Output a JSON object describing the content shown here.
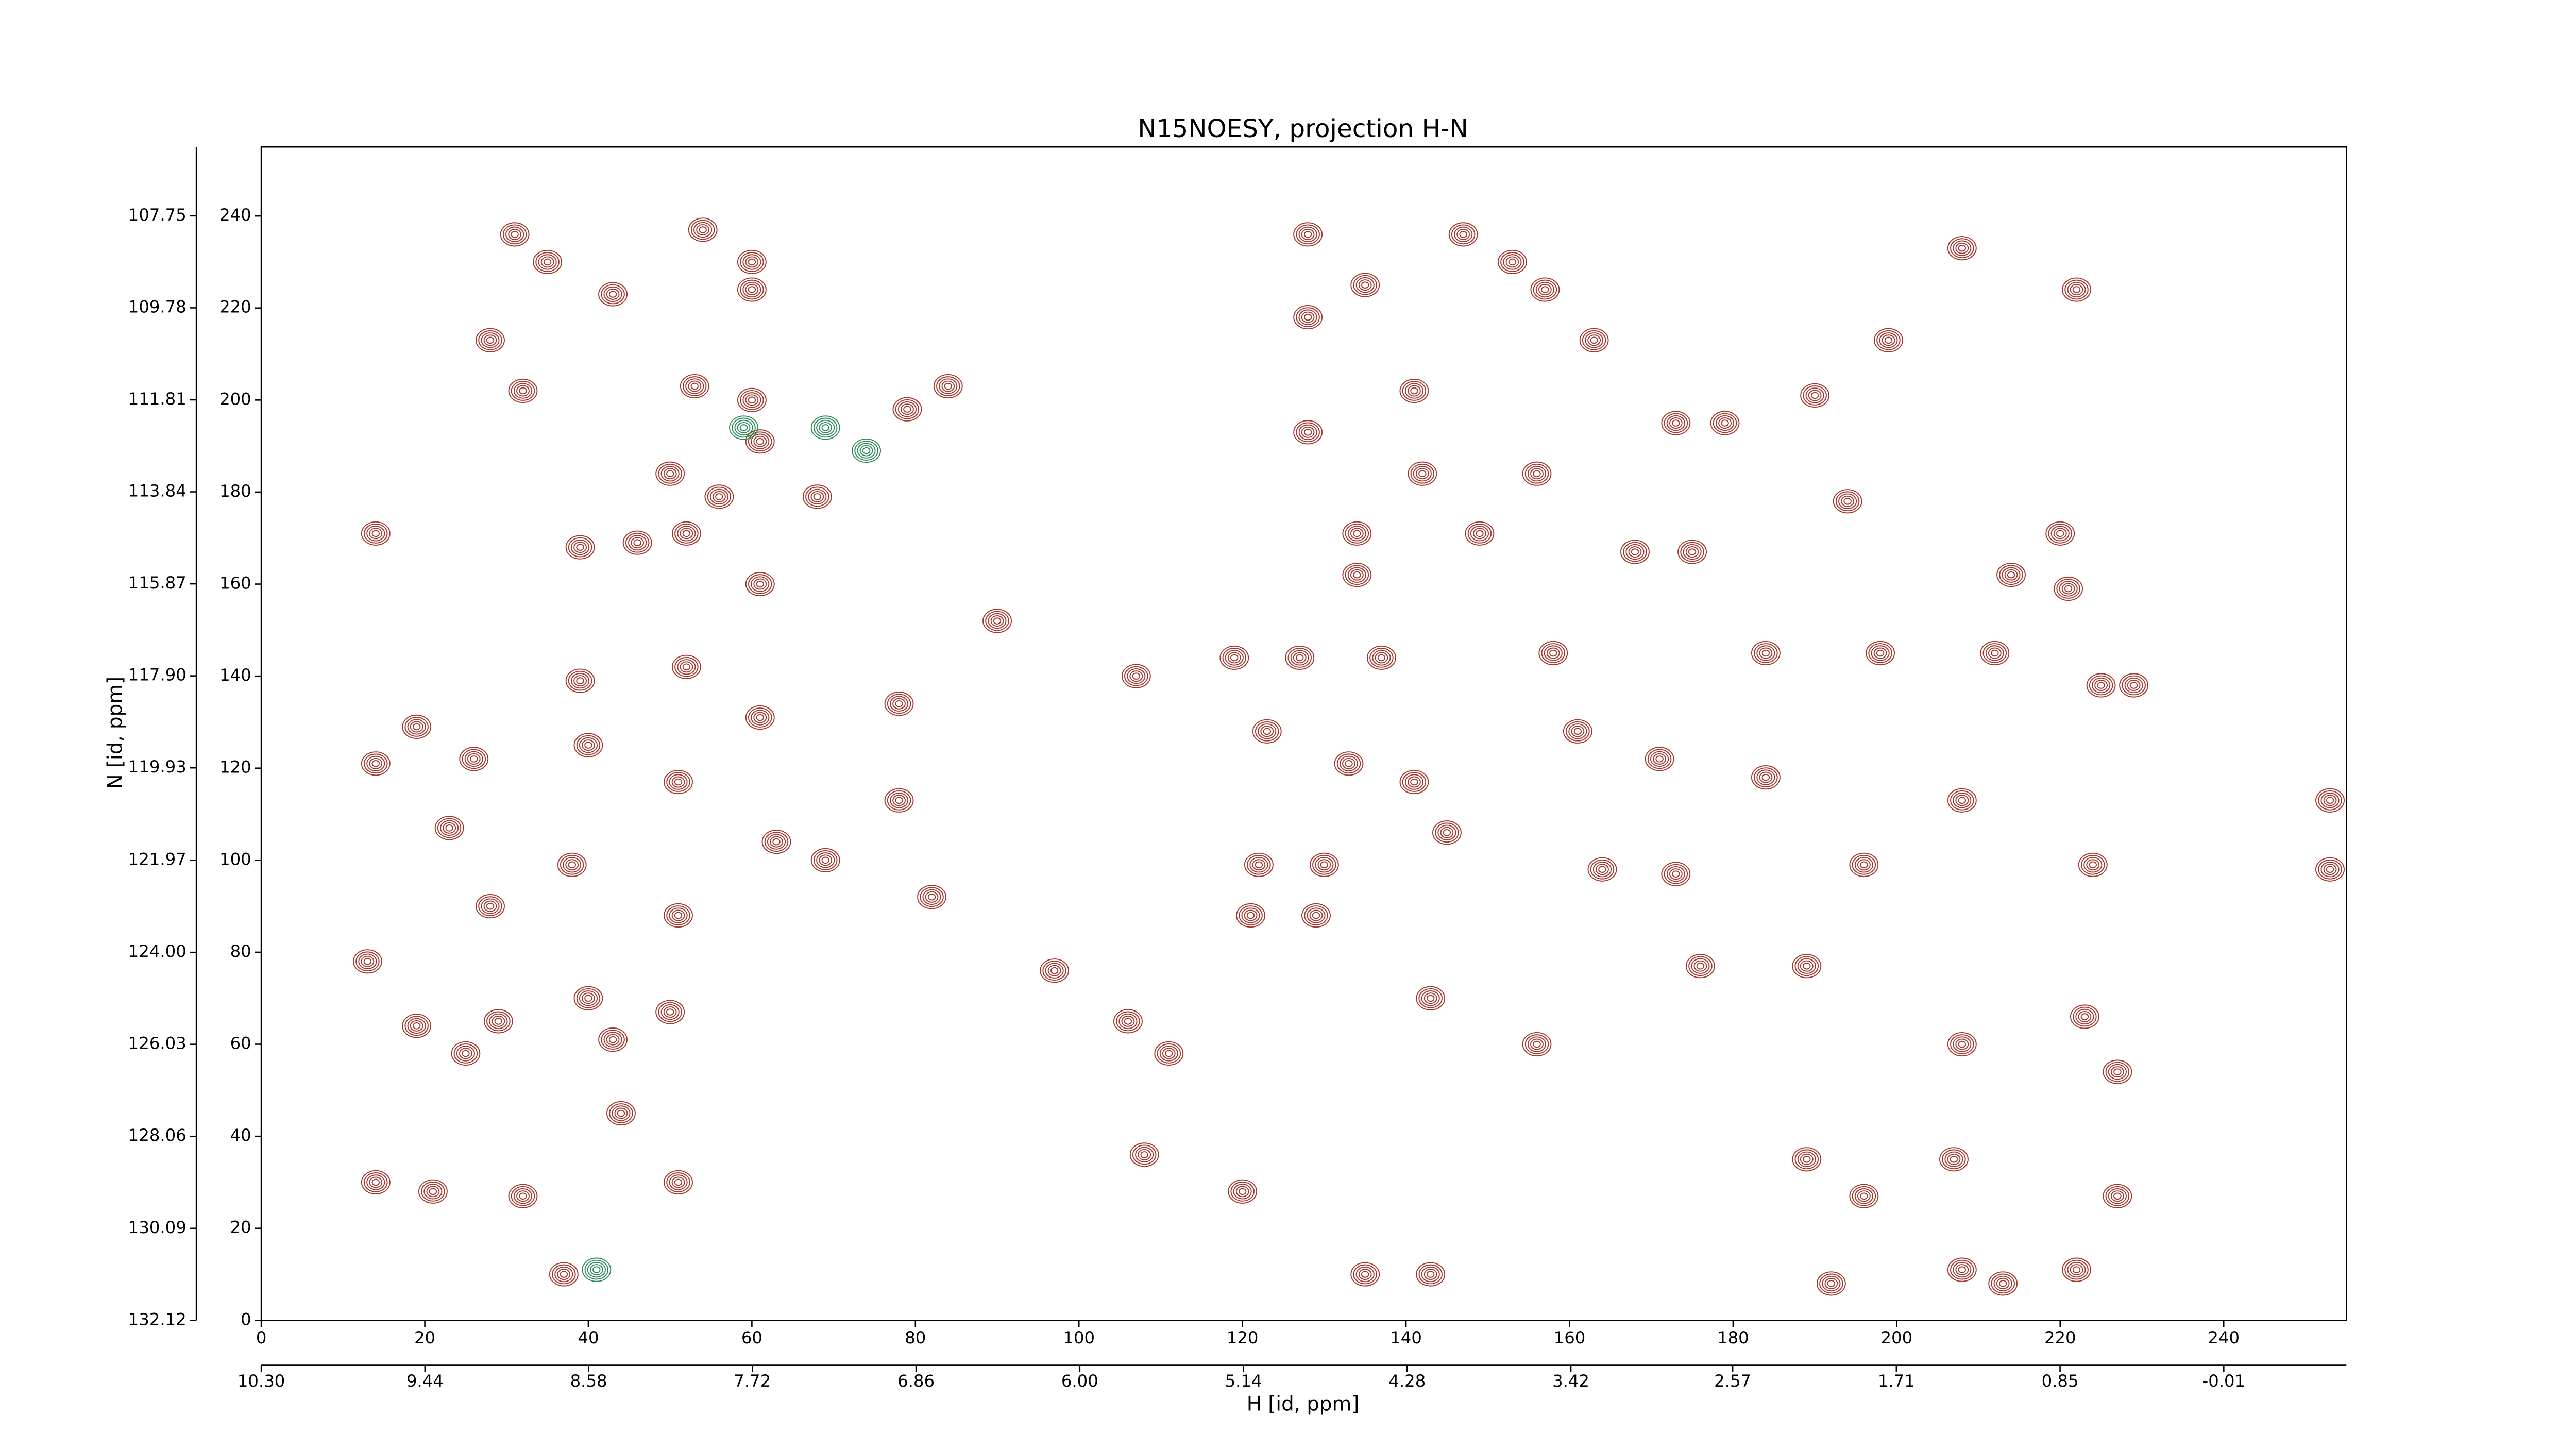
{
  "chart_data": {
    "type": "contour",
    "title": "N15NOESY, projection H-N",
    "xlabel": "H [id, ppm]",
    "ylabel": "N [id, ppm]",
    "xlim": [
      0,
      255
    ],
    "xticks": [
      0,
      20,
      40,
      60,
      80,
      100,
      120,
      140,
      160,
      180,
      200,
      220,
      240
    ],
    "ylim": [
      0,
      255
    ],
    "yticks": [
      0,
      20,
      40,
      60,
      80,
      100,
      120,
      140,
      160,
      180,
      200,
      220,
      240
    ],
    "x2lim": [
      10.3,
      -0.654
    ],
    "x2ticks": [
      {
        "value": 10.3,
        "label": "10.30"
      },
      9.44,
      8.58,
      7.72,
      6.86,
      {
        "value": 6.0,
        "label": "6.00"
      },
      5.14,
      4.28,
      3.42,
      2.57,
      1.71,
      0.85,
      -0.01
    ],
    "y2lim": [
      132.12,
      106.23
    ],
    "y2ticks": [
      132.12,
      130.09,
      128.06,
      126.03,
      {
        "value": 124.0,
        "label": "124.00"
      },
      121.97,
      119.93,
      {
        "value": 117.9,
        "label": "117.90"
      },
      115.87,
      113.84,
      111.81,
      109.78,
      107.75
    ],
    "series": [
      {
        "color": "#a3372e",
        "x": [
          31,
          54,
          60,
          35,
          43,
          28,
          32,
          60,
          60,
          53,
          61,
          50,
          56,
          68,
          79,
          84,
          14,
          39,
          52,
          46,
          61,
          39,
          52,
          19,
          14,
          26,
          40,
          61,
          51,
          23,
          38,
          63,
          69,
          51,
          28,
          13,
          19,
          25,
          29,
          43,
          40,
          50,
          44,
          14,
          21,
          32,
          51,
          37,
          78,
          78,
          82,
          90,
          107,
          97,
          106,
          111,
          108,
          120,
          128,
          128,
          128,
          135,
          147,
          153,
          157,
          163,
          173,
          179,
          141,
          142,
          156,
          134,
          149,
          168,
          175,
          134,
          208,
          222,
          199,
          190,
          194,
          220,
          221,
          214,
          122,
          130,
          145,
          164,
          173,
          196,
          224,
          208,
          225,
          229,
          253,
          253,
          176,
          189,
          143,
          156,
          208,
          223,
          227,
          189,
          207,
          196,
          227,
          208,
          213,
          222,
          135,
          143,
          192,
          121,
          129,
          161,
          171,
          184,
          123,
          133,
          141,
          119,
          127,
          137,
          158,
          184,
          198,
          212
        ],
        "values": [
          236,
          237,
          230,
          230,
          223,
          213,
          202,
          224,
          200,
          203,
          191,
          184,
          179,
          179,
          198,
          203,
          171,
          168,
          171,
          169,
          160,
          139,
          142,
          129,
          121,
          122,
          125,
          131,
          117,
          107,
          99,
          104,
          100,
          88,
          90,
          78,
          64,
          58,
          65,
          61,
          70,
          67,
          45,
          30,
          28,
          27,
          30,
          10,
          134,
          113,
          92,
          152,
          140,
          76,
          65,
          58,
          36,
          28,
          236,
          218,
          193,
          225,
          236,
          230,
          224,
          213,
          195,
          195,
          202,
          184,
          184,
          171,
          171,
          167,
          167,
          162,
          233,
          224,
          213,
          201,
          178,
          171,
          159,
          162,
          99,
          99,
          106,
          98,
          97,
          99,
          99,
          113,
          138,
          138,
          113,
          98,
          77,
          77,
          70,
          60,
          60,
          66,
          54,
          35,
          35,
          27,
          27,
          11,
          8,
          11,
          10,
          10,
          8,
          88,
          88,
          128,
          122,
          118,
          128,
          121,
          117,
          144,
          144,
          144,
          145,
          145,
          145,
          145
        ]
      },
      {
        "color": "#2e8b57",
        "x": [
          59,
          69,
          74,
          41
        ],
        "values": [
          194,
          194,
          189,
          11
        ]
      }
    ]
  }
}
